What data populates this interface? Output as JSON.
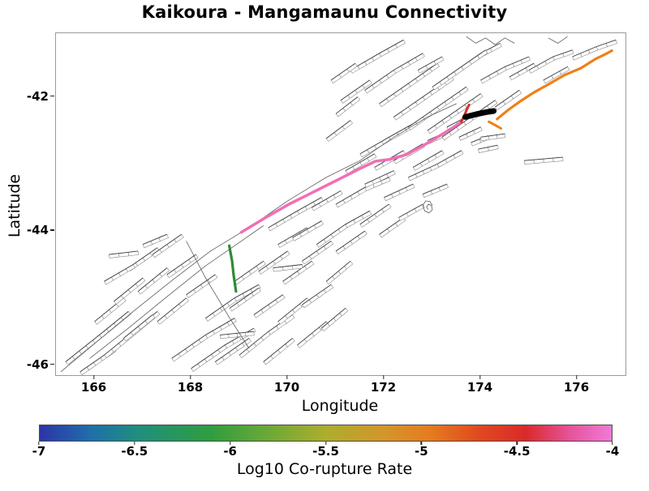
{
  "title": "Kaikoura - Mangamaunu Connectivity",
  "chart_data": {
    "type": "line",
    "title": "Kaikoura - Mangamaunu Connectivity",
    "xlabel": "Longitude",
    "ylabel": "Latitude",
    "xlim": [
      165.2,
      177.0
    ],
    "ylim": [
      -46.15,
      -41.05
    ],
    "xticks": [
      166,
      168,
      170,
      172,
      174,
      176
    ],
    "yticks": [
      -42,
      -44,
      -46
    ],
    "grid": false,
    "legend": "none",
    "colorbar": {
      "label": "Log10 Co-rupture Rate",
      "min": -7,
      "max": -4,
      "ticks": [
        -7,
        -6.5,
        -6,
        -5.5,
        -5,
        -4.5,
        -4
      ],
      "gradient_stops": [
        {
          "pos": 0,
          "color": "#2d34a8"
        },
        {
          "pos": 9,
          "color": "#1f6faa"
        },
        {
          "pos": 17,
          "color": "#1f8e7e"
        },
        {
          "pos": 30,
          "color": "#2f9e3f"
        },
        {
          "pos": 42,
          "color": "#79aa35"
        },
        {
          "pos": 50,
          "color": "#adad2e"
        },
        {
          "pos": 60,
          "color": "#d3962a"
        },
        {
          "pos": 68,
          "color": "#e57d20"
        },
        {
          "pos": 77,
          "color": "#e0481f"
        },
        {
          "pos": 85,
          "color": "#da2a2a"
        },
        {
          "pos": 93,
          "color": "#e6559e"
        },
        {
          "pos": 100,
          "color": "#f07ad8"
        }
      ]
    },
    "highlighted_faults": [
      {
        "name": "co-rupture-section-pink",
        "approx_log10_rate": -4.1,
        "color": "#f06fb4",
        "width": 3.5,
        "points": [
          [
            169.04,
            -44.02
          ],
          [
            169.52,
            -43.81
          ],
          [
            170.03,
            -43.6
          ],
          [
            170.53,
            -43.42
          ],
          [
            171.03,
            -43.24
          ],
          [
            171.5,
            -43.07
          ],
          [
            171.82,
            -42.96
          ],
          [
            172.12,
            -42.93
          ],
          [
            172.46,
            -42.86
          ],
          [
            172.8,
            -42.73
          ],
          [
            173.13,
            -42.59
          ],
          [
            173.4,
            -42.47
          ],
          [
            173.6,
            -42.37
          ]
        ]
      },
      {
        "name": "co-rupture-section-red",
        "approx_log10_rate": -4.5,
        "color": "#d62f1e",
        "width": 3,
        "points": [
          [
            173.6,
            -42.37
          ],
          [
            173.66,
            -42.28
          ],
          [
            173.71,
            -42.19
          ],
          [
            173.76,
            -42.12
          ]
        ]
      },
      {
        "name": "co-rupture-dash-orange",
        "approx_log10_rate": -5.0,
        "color": "#f08018",
        "width": 3,
        "points": [
          [
            174.17,
            -42.37
          ],
          [
            174.3,
            -42.42
          ],
          [
            174.42,
            -42.47
          ]
        ]
      },
      {
        "name": "co-rupture-section-orange",
        "approx_log10_rate": -5.0,
        "color": "#f08018",
        "width": 3.2,
        "points": [
          [
            174.34,
            -42.33
          ],
          [
            174.56,
            -42.2
          ],
          [
            174.81,
            -42.07
          ],
          [
            175.11,
            -41.93
          ],
          [
            175.41,
            -41.81
          ],
          [
            175.75,
            -41.67
          ],
          [
            176.08,
            -41.57
          ],
          [
            176.39,
            -41.43
          ],
          [
            176.59,
            -41.36
          ],
          [
            176.72,
            -41.31
          ]
        ]
      },
      {
        "name": "co-rupture-section-green",
        "approx_log10_rate": -6.0,
        "color": "#2e8b33",
        "width": 3.2,
        "points": [
          [
            168.79,
            -44.22
          ],
          [
            168.85,
            -44.45
          ],
          [
            168.88,
            -44.65
          ],
          [
            168.93,
            -44.9
          ]
        ]
      },
      {
        "name": "target-fault-mangamaunu-black",
        "approx_log10_rate": null,
        "color": "#000000",
        "width": 7,
        "points": [
          [
            173.68,
            -42.3
          ],
          [
            173.9,
            -42.26
          ],
          [
            174.1,
            -42.23
          ],
          [
            174.27,
            -42.21
          ]
        ]
      }
    ],
    "background_faults": [
      [
        [
          165.4,
          -45.95
        ],
        [
          166.1,
          -45.55
        ],
        [
          166.7,
          -45.2
        ]
      ],
      [
        [
          165.7,
          -46.1
        ],
        [
          166.4,
          -45.75
        ]
      ],
      [
        [
          166.2,
          -45.85
        ],
        [
          166.8,
          -45.5
        ],
        [
          167.3,
          -45.2
        ]
      ],
      [
        [
          166.6,
          -45.6
        ],
        [
          167.2,
          -45.25
        ]
      ],
      [
        [
          166.0,
          -45.35
        ],
        [
          166.6,
          -45.0
        ]
      ],
      [
        [
          166.4,
          -45.05
        ],
        [
          167.0,
          -44.7
        ]
      ],
      [
        [
          166.9,
          -44.9
        ],
        [
          167.5,
          -44.55
        ]
      ],
      [
        [
          167.3,
          -45.35
        ],
        [
          167.9,
          -45.0
        ]
      ],
      [
        [
          166.7,
          -44.55
        ],
        [
          167.3,
          -44.25
        ]
      ],
      [
        [
          167.2,
          -44.35
        ],
        [
          167.8,
          -44.05
        ]
      ],
      [
        [
          166.3,
          -44.35
        ],
        [
          166.9,
          -44.3
        ]
      ],
      [
        [
          166.2,
          -44.75
        ],
        [
          166.8,
          -44.5
        ]
      ],
      [
        [
          167.5,
          -44.65
        ],
        [
          168.1,
          -44.35
        ]
      ],
      [
        [
          167.9,
          -44.95
        ],
        [
          168.5,
          -44.65
        ]
      ],
      [
        [
          167.0,
          -44.2
        ],
        [
          167.5,
          -44.05
        ]
      ],
      [
        [
          167.6,
          -45.9
        ],
        [
          168.3,
          -45.55
        ],
        [
          168.9,
          -45.3
        ]
      ],
      [
        [
          168.0,
          -46.05
        ],
        [
          168.7,
          -45.7
        ],
        [
          169.3,
          -45.45
        ]
      ],
      [
        [
          168.5,
          -45.95
        ],
        [
          169.2,
          -45.6
        ]
      ],
      [
        [
          169.0,
          -45.85
        ],
        [
          169.6,
          -45.5
        ],
        [
          170.1,
          -45.25
        ]
      ],
      [
        [
          169.5,
          -45.95
        ],
        [
          170.1,
          -45.6
        ]
      ],
      [
        [
          168.3,
          -45.3
        ],
        [
          168.9,
          -45.0
        ],
        [
          169.4,
          -44.8
        ]
      ],
      [
        [
          168.8,
          -45.15
        ],
        [
          169.4,
          -44.85
        ]
      ],
      [
        [
          169.3,
          -45.25
        ],
        [
          169.9,
          -44.95
        ]
      ],
      [
        [
          169.8,
          -45.35
        ],
        [
          170.4,
          -45.0
        ]
      ],
      [
        [
          170.2,
          -45.7
        ],
        [
          170.8,
          -45.35
        ]
      ],
      [
        [
          168.9,
          -44.75
        ],
        [
          169.5,
          -44.45
        ]
      ],
      [
        [
          169.4,
          -44.6
        ],
        [
          170.0,
          -44.3
        ]
      ],
      [
        [
          169.9,
          -44.75
        ],
        [
          170.5,
          -44.45
        ]
      ],
      [
        [
          170.3,
          -45.1
        ],
        [
          170.9,
          -44.8
        ]
      ],
      [
        [
          170.7,
          -45.45
        ],
        [
          171.2,
          -45.15
        ]
      ],
      [
        [
          169.8,
          -44.2
        ],
        [
          170.4,
          -43.95
        ]
      ],
      [
        [
          170.3,
          -44.45
        ],
        [
          170.9,
          -44.15
        ]
      ],
      [
        [
          170.8,
          -44.75
        ],
        [
          171.3,
          -44.45
        ]
      ],
      [
        [
          168.6,
          -45.55
        ],
        [
          169.3,
          -45.5
        ]
      ],
      [
        [
          169.7,
          -44.55
        ],
        [
          170.3,
          -44.5
        ]
      ],
      [
        [
          169.6,
          -43.95
        ],
        [
          170.2,
          -43.7
        ],
        [
          170.7,
          -43.5
        ]
      ],
      [
        [
          170.1,
          -44.1
        ],
        [
          170.7,
          -43.85
        ]
      ],
      [
        [
          170.6,
          -44.2
        ],
        [
          171.2,
          -43.9
        ],
        [
          171.7,
          -43.7
        ]
      ],
      [
        [
          171.0,
          -44.3
        ],
        [
          171.6,
          -44.0
        ]
      ],
      [
        [
          170.5,
          -43.65
        ],
        [
          171.1,
          -43.4
        ]
      ],
      [
        [
          171.0,
          -43.6
        ],
        [
          171.6,
          -43.35
        ],
        [
          172.1,
          -43.2
        ]
      ],
      [
        [
          171.5,
          -43.9
        ],
        [
          172.1,
          -43.6
        ]
      ],
      [
        [
          171.9,
          -44.05
        ],
        [
          172.4,
          -43.8
        ]
      ],
      [
        [
          171.6,
          -43.3
        ],
        [
          172.2,
          -43.1
        ]
      ],
      [
        [
          172.0,
          -43.5
        ],
        [
          172.6,
          -43.3
        ]
      ],
      [
        [
          172.3,
          -43.8
        ],
        [
          172.8,
          -43.6
        ]
      ],
      [
        [
          172.5,
          -43.2
        ],
        [
          173.1,
          -43.0
        ]
      ],
      [
        [
          172.8,
          -43.45
        ],
        [
          173.3,
          -43.3
        ]
      ],
      [
        [
          171.5,
          -42.85
        ],
        [
          172.1,
          -42.6
        ],
        [
          172.6,
          -42.4
        ]
      ],
      [
        [
          171.8,
          -43.05
        ],
        [
          172.4,
          -42.8
        ]
      ],
      [
        [
          172.2,
          -42.95
        ],
        [
          172.8,
          -42.7
        ]
      ],
      [
        [
          172.6,
          -43.05
        ],
        [
          173.2,
          -42.8
        ]
      ],
      [
        [
          172.9,
          -42.65
        ],
        [
          173.5,
          -42.45
        ]
      ],
      [
        [
          173.1,
          -43.0
        ],
        [
          173.6,
          -42.8
        ]
      ],
      [
        [
          173.3,
          -42.45
        ],
        [
          173.7,
          -42.3
        ]
      ],
      [
        [
          171.2,
          -43.1
        ],
        [
          171.8,
          -42.85
        ]
      ],
      [
        [
          173.55,
          -42.6
        ],
        [
          174.0,
          -42.45
        ]
      ],
      [
        [
          173.8,
          -42.68
        ],
        [
          174.15,
          -42.58
        ]
      ],
      [
        [
          171.6,
          -41.9
        ],
        [
          172.2,
          -41.6
        ],
        [
          172.8,
          -41.35
        ]
      ],
      [
        [
          171.9,
          -42.1
        ],
        [
          172.5,
          -41.8
        ],
        [
          173.1,
          -41.5
        ]
      ],
      [
        [
          172.2,
          -42.3
        ],
        [
          172.8,
          -42.0
        ],
        [
          173.4,
          -41.7
        ]
      ],
      [
        [
          172.5,
          -42.45
        ],
        [
          173.1,
          -42.15
        ],
        [
          173.7,
          -41.85
        ]
      ],
      [
        [
          172.9,
          -42.5
        ],
        [
          173.5,
          -42.2
        ],
        [
          174.0,
          -41.95
        ]
      ],
      [
        [
          173.2,
          -42.6
        ],
        [
          173.8,
          -42.3
        ],
        [
          174.3,
          -42.05
        ]
      ],
      [
        [
          173.5,
          -41.6
        ],
        [
          174.0,
          -41.35
        ],
        [
          174.4,
          -41.2
        ]
      ],
      [
        [
          173.0,
          -41.85
        ],
        [
          173.6,
          -41.55
        ],
        [
          174.1,
          -41.3
        ]
      ],
      [
        [
          171.3,
          -41.6
        ],
        [
          171.9,
          -41.35
        ],
        [
          172.4,
          -41.15
        ]
      ],
      [
        [
          171.1,
          -42.05
        ],
        [
          171.7,
          -41.75
        ]
      ],
      [
        [
          170.9,
          -41.75
        ],
        [
          171.4,
          -41.5
        ]
      ],
      [
        [
          172.7,
          -41.6
        ],
        [
          173.2,
          -41.4
        ]
      ],
      [
        [
          174.0,
          -41.75
        ],
        [
          174.5,
          -41.55
        ],
        [
          175.0,
          -41.4
        ]
      ],
      [
        [
          174.3,
          -42.15
        ],
        [
          174.8,
          -41.9
        ]
      ],
      [
        [
          174.6,
          -41.7
        ],
        [
          175.1,
          -41.5
        ]
      ],
      [
        [
          175.0,
          -41.6
        ],
        [
          175.5,
          -41.4
        ],
        [
          175.9,
          -41.3
        ]
      ],
      [
        [
          175.3,
          -41.75
        ],
        [
          175.8,
          -41.55
        ]
      ],
      [
        [
          175.9,
          -41.4
        ],
        [
          176.4,
          -41.25
        ],
        [
          176.8,
          -41.15
        ]
      ],
      [
        [
          174.0,
          -42.6
        ],
        [
          174.5,
          -42.55
        ]
      ],
      [
        [
          174.9,
          -42.95
        ],
        [
          175.7,
          -42.9
        ]
      ],
      [
        [
          173.95,
          -42.78
        ],
        [
          174.35,
          -42.72
        ]
      ],
      [
        [
          170.8,
          -42.62
        ],
        [
          171.3,
          -42.35
        ]
      ],
      [
        [
          171.0,
          -42.25
        ],
        [
          171.45,
          -42.0
        ]
      ]
    ],
    "plain_lines": [
      [
        [
          165.3,
          -46.1
        ],
        [
          166.0,
          -45.68
        ],
        [
          166.8,
          -45.2
        ],
        [
          167.6,
          -44.74
        ],
        [
          168.4,
          -44.3
        ],
        [
          169.04,
          -44.02
        ]
      ],
      [
        [
          165.9,
          -45.9
        ],
        [
          166.7,
          -45.45
        ],
        [
          167.5,
          -44.98
        ],
        [
          168.3,
          -44.52
        ],
        [
          169.0,
          -44.17
        ],
        [
          169.5,
          -43.92
        ]
      ],
      [
        [
          169.2,
          -43.95
        ],
        [
          170.0,
          -43.55
        ],
        [
          170.8,
          -43.2
        ],
        [
          171.5,
          -42.95
        ],
        [
          172.2,
          -42.6
        ],
        [
          172.9,
          -42.3
        ],
        [
          173.5,
          -42.1
        ]
      ],
      [
        [
          167.9,
          -44.15
        ],
        [
          168.3,
          -44.7
        ],
        [
          168.8,
          -45.3
        ],
        [
          169.2,
          -45.75
        ]
      ],
      [
        [
          173.0,
          -43.62
        ],
        [
          172.95,
          -43.56
        ],
        [
          172.86,
          -43.55
        ],
        [
          172.8,
          -43.62
        ],
        [
          172.84,
          -43.7
        ],
        [
          172.93,
          -43.73
        ],
        [
          173.0,
          -43.68
        ],
        [
          172.98,
          -43.62
        ],
        [
          172.92,
          -43.6
        ],
        [
          172.88,
          -43.64
        ],
        [
          172.91,
          -43.68
        ]
      ],
      [
        [
          173.7,
          -41.1
        ],
        [
          173.9,
          -41.2
        ],
        [
          174.1,
          -41.12
        ],
        [
          174.3,
          -41.22
        ],
        [
          174.5,
          -41.12
        ],
        [
          174.7,
          -41.2
        ]
      ],
      [
        [
          175.4,
          -41.12
        ],
        [
          175.6,
          -41.2
        ],
        [
          175.8,
          -41.1
        ]
      ]
    ]
  }
}
